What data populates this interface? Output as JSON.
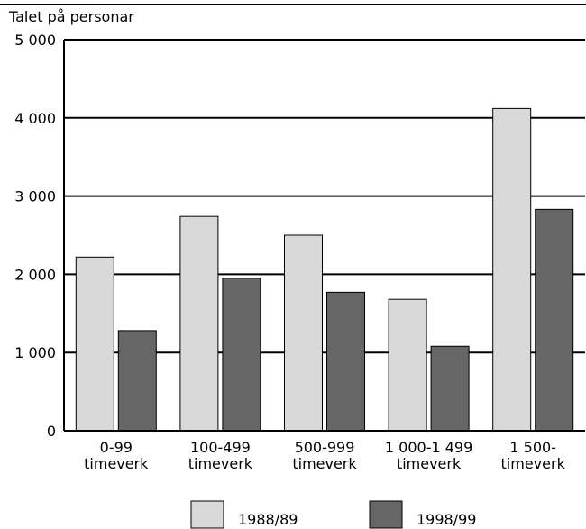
{
  "chart_data": {
    "type": "bar",
    "ylabel": "Talet på personar",
    "ylim": [
      0,
      5000
    ],
    "yticks": [
      {
        "value": 0,
        "label": "0"
      },
      {
        "value": 1000,
        "label": "1 000"
      },
      {
        "value": 2000,
        "label": "2 000"
      },
      {
        "value": 3000,
        "label": "3 000"
      },
      {
        "value": 4000,
        "label": "4 000"
      },
      {
        "value": 5000,
        "label": "5 000"
      }
    ],
    "grid": true,
    "legend_position": "bottom",
    "categories": [
      {
        "line1": "0-99",
        "line2": "timeverk"
      },
      {
        "line1": "100-499",
        "line2": "timeverk"
      },
      {
        "line1": "500-999",
        "line2": "timeverk"
      },
      {
        "line1": "1 000-1 499",
        "line2": "timeverk"
      },
      {
        "line1": "1 500-",
        "line2": "timeverk"
      }
    ],
    "series": [
      {
        "name": "1988/89",
        "color": "#d9d9d9",
        "values": [
          2220,
          2740,
          2500,
          1680,
          4120
        ]
      },
      {
        "name": "1998/99",
        "color": "#666666",
        "values": [
          1280,
          1950,
          1770,
          1080,
          2830
        ]
      }
    ]
  }
}
